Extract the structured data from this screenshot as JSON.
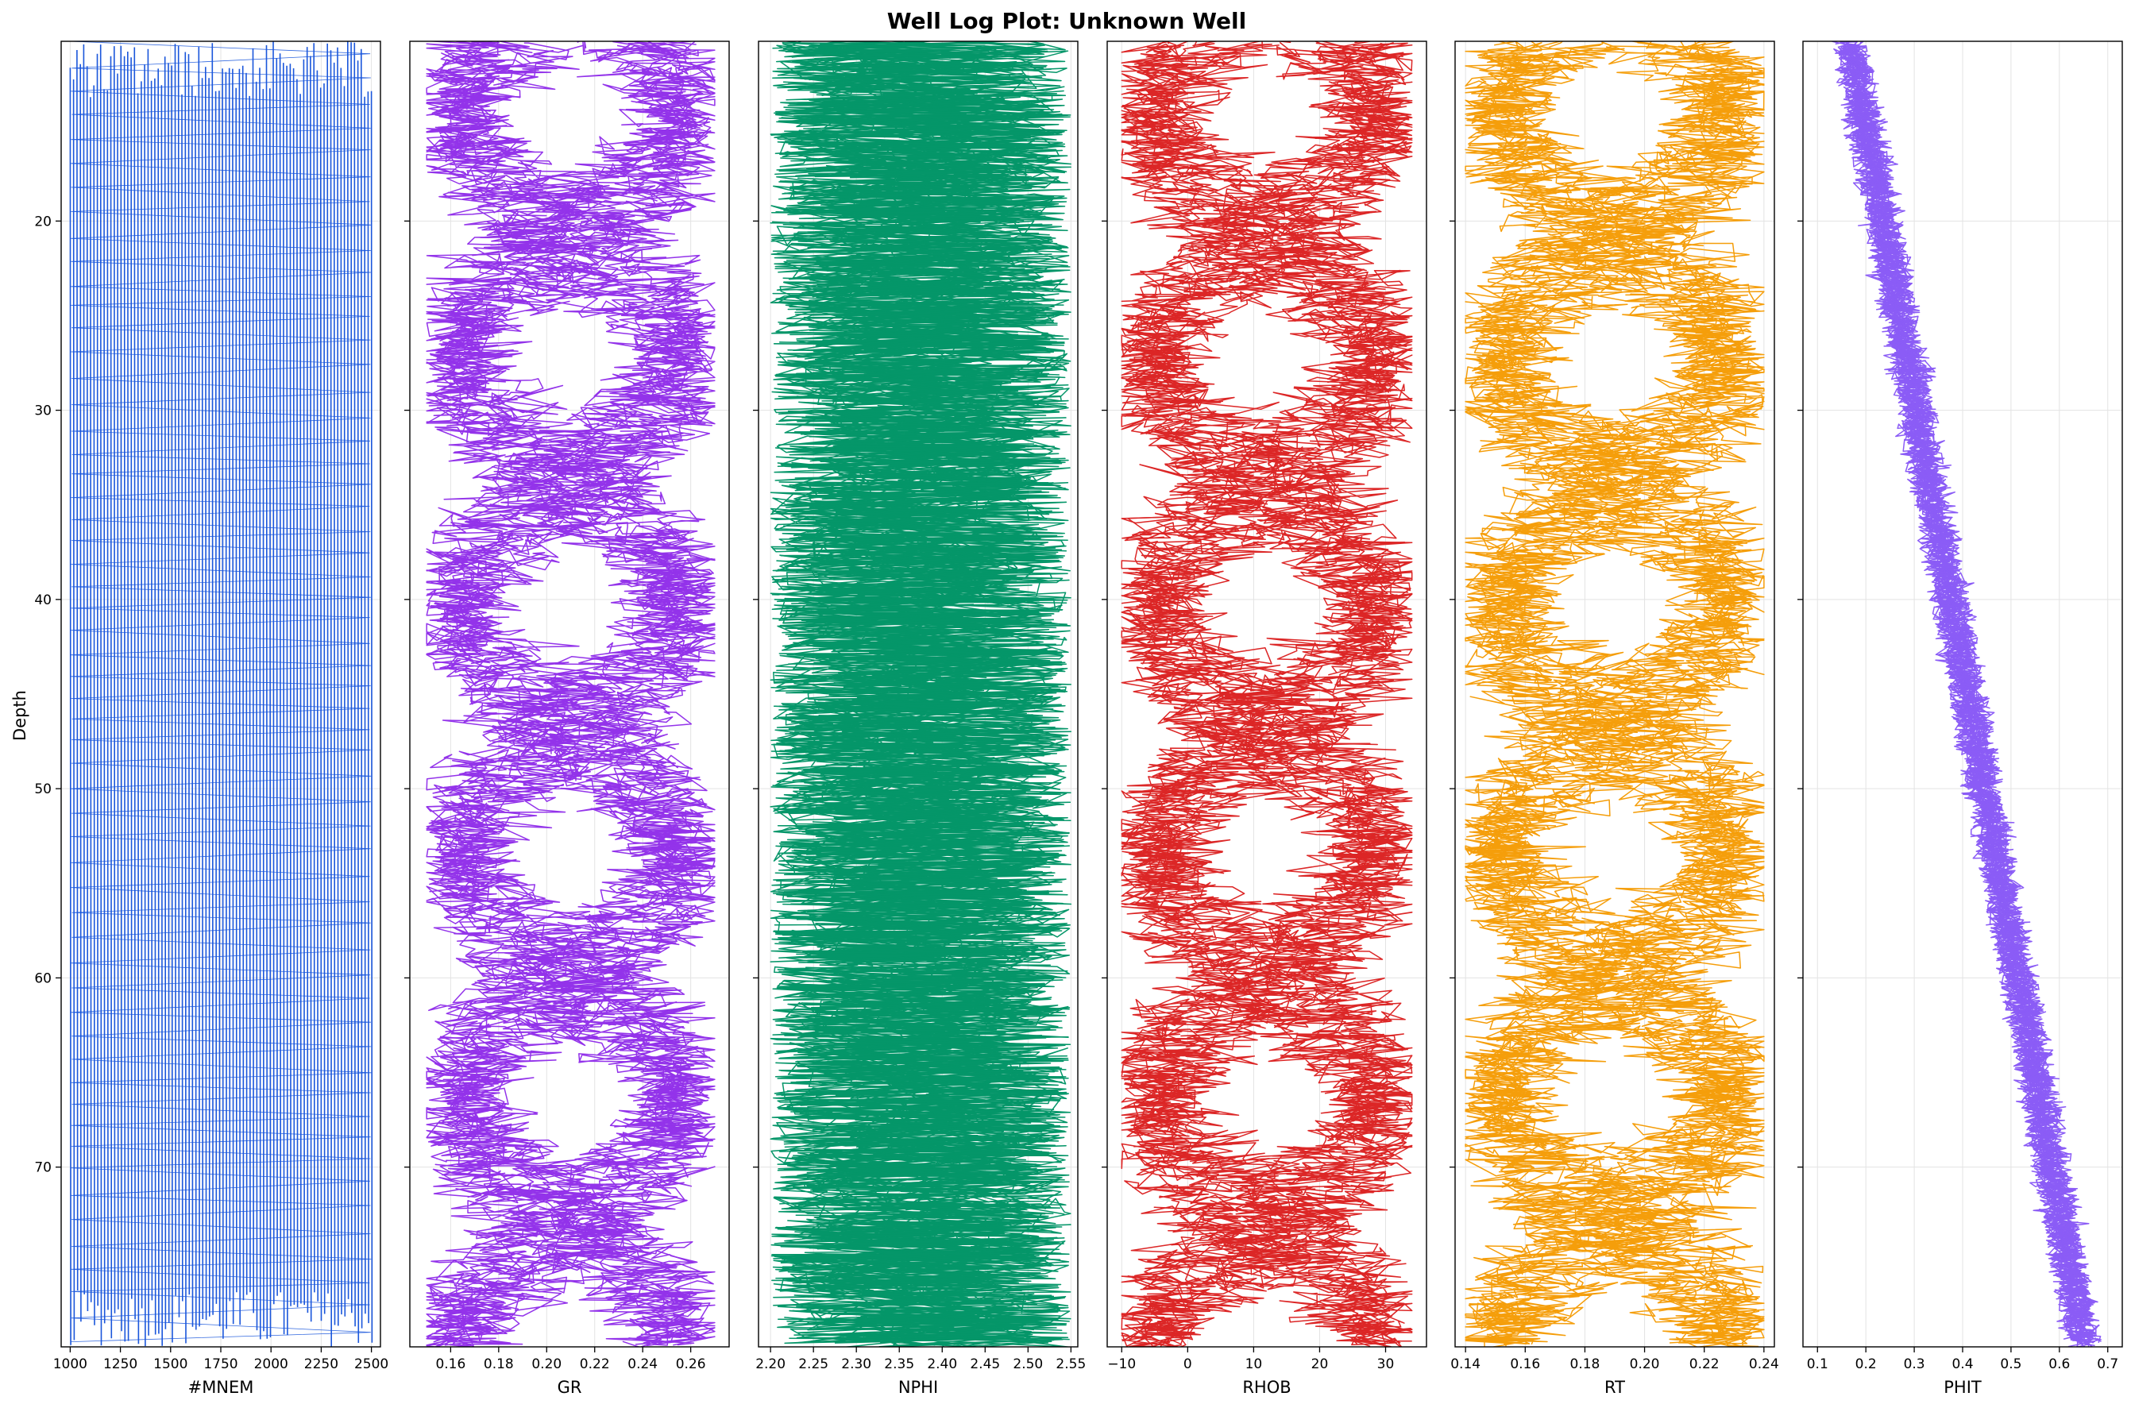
{
  "chart_data": {
    "type": "line",
    "title": "Well Log Plot: Unknown Well",
    "ylabel": "Depth",
    "ylim": [
      79.5,
      10.5
    ],
    "yticks": [
      20,
      30,
      40,
      50,
      60,
      70
    ],
    "grid": true,
    "tracks": [
      {
        "name": "#MNEM",
        "color": "#1a56db",
        "xlim": [
          955,
          2545
        ],
        "xticks": [
          1000,
          1250,
          1500,
          1750,
          2000,
          2250,
          2500
        ],
        "xtick_labels": [
          "1000",
          "1250",
          "1500",
          "1750",
          "2000",
          "2250",
          "2500"
        ],
        "pattern": "sawtooth",
        "x_range": [
          1000,
          2500
        ],
        "period": 1.22
      },
      {
        "name": "GR",
        "color": "#9333ea",
        "xlim": [
          0.143,
          0.276
        ],
        "xticks": [
          0.16,
          0.18,
          0.2,
          0.22,
          0.24,
          0.26
        ],
        "xtick_labels": [
          "0.16",
          "0.18",
          "0.20",
          "0.22",
          "0.24",
          "0.26"
        ],
        "pattern": "braided",
        "x_range": [
          0.15,
          0.27
        ],
        "traces": 16,
        "braid_period": 26
      },
      {
        "name": "NPHI",
        "color": "#059669",
        "xlim": [
          2.186,
          2.558
        ],
        "xticks": [
          2.2,
          2.25,
          2.3,
          2.35,
          2.4,
          2.45,
          2.5,
          2.55
        ],
        "xtick_labels": [
          "2.20",
          "2.25",
          "2.30",
          "2.35",
          "2.40",
          "2.45",
          "2.50",
          "2.55"
        ],
        "pattern": "noise",
        "x_range": [
          2.2,
          2.55
        ],
        "traces": 16
      },
      {
        "name": "RHOB",
        "color": "#dc2626",
        "xlim": [
          -12.2,
          36.2
        ],
        "xticks": [
          -10,
          0,
          10,
          20,
          30
        ],
        "xtick_labels": [
          "−10",
          "0",
          "10",
          "20",
          "30"
        ],
        "pattern": "braided",
        "x_range": [
          -10,
          34
        ],
        "traces": 16,
        "braid_period": 26
      },
      {
        "name": "RT",
        "color": "#f59e0b",
        "xlim": [
          0.1365,
          0.2435
        ],
        "xticks": [
          0.14,
          0.16,
          0.18,
          0.2,
          0.22,
          0.24
        ],
        "xtick_labels": [
          "0.14",
          "0.16",
          "0.18",
          "0.20",
          "0.22",
          "0.24"
        ],
        "pattern": "braided",
        "x_range": [
          0.14,
          0.24
        ],
        "traces": 16,
        "braid_period": 26
      },
      {
        "name": "PHIT",
        "color": "#8b5cf6",
        "xlim": [
          0.07,
          0.73
        ],
        "xticks": [
          0.1,
          0.2,
          0.3,
          0.4,
          0.5,
          0.6,
          0.7
        ],
        "xtick_labels": [
          "0.1",
          "0.2",
          "0.3",
          "0.4",
          "0.5",
          "0.6",
          "0.7"
        ],
        "pattern": "trend",
        "x_start": 0.17,
        "x_end": 0.65,
        "spread": 0.06,
        "traces": 16
      }
    ]
  }
}
